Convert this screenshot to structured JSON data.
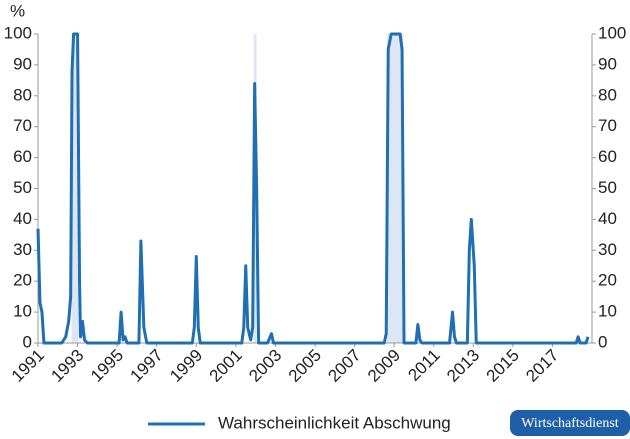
{
  "chart_data": {
    "type": "line",
    "y_label": "%",
    "x": [
      1991.0,
      1991.1,
      1991.2,
      1991.3,
      1992.2,
      1992.4,
      1992.55,
      1992.65,
      1992.72,
      1992.8,
      1993.0,
      1993.1,
      1993.15,
      1993.25,
      1993.35,
      1993.5,
      1995.1,
      1995.2,
      1995.3,
      1995.4,
      1995.5,
      1996.1,
      1996.2,
      1996.35,
      1996.5,
      1998.8,
      1998.9,
      1999.0,
      1999.1,
      1999.2,
      2001.3,
      2001.4,
      2001.5,
      2001.6,
      2001.75,
      2001.85,
      2001.95,
      2002.05,
      2002.15,
      2002.6,
      2002.8,
      2002.9,
      2008.5,
      2008.6,
      2008.7,
      2008.85,
      2009.3,
      2009.4,
      2009.5,
      2010.1,
      2010.2,
      2010.3,
      2010.4,
      2011.8,
      2011.95,
      2012.05,
      2012.15,
      2012.7,
      2012.8,
      2012.9,
      2013.05,
      2013.15,
      2018.2,
      2018.3,
      2018.4,
      2018.7,
      2018.8
    ],
    "series": [
      {
        "name": "Wahrscheinlichkeit Abschwung",
        "color": "#1f6fb2",
        "values": [
          37,
          13,
          10,
          0,
          0,
          2,
          7,
          15,
          88,
          100,
          100,
          20,
          2,
          7,
          1,
          0,
          0,
          10,
          1,
          2,
          0,
          0,
          33,
          5,
          0,
          0,
          5,
          28,
          5,
          0,
          0,
          5,
          25,
          5,
          1,
          5,
          84,
          50,
          0,
          0,
          3,
          0,
          0,
          3,
          95,
          100,
          100,
          95,
          0,
          0,
          6,
          1,
          0,
          0,
          10,
          2,
          0,
          0,
          30,
          40,
          25,
          0,
          0,
          2,
          0,
          0,
          2
        ]
      }
    ],
    "shaded": [
      [
        1992.7,
        1993.05
      ],
      [
        2001.9,
        2002.05
      ],
      [
        2008.65,
        2009.45
      ]
    ],
    "shade_color": "#dde6f4",
    "xlim": [
      1991,
      2019
    ],
    "xticks": [
      1991,
      1993,
      1995,
      1997,
      1999,
      2001,
      2003,
      2005,
      2007,
      2009,
      2011,
      2013,
      2015,
      2017
    ],
    "ylim": [
      0,
      100
    ],
    "yticks": [
      0,
      10,
      20,
      30,
      40,
      50,
      60,
      70,
      80,
      90,
      100
    ],
    "y2lim": [
      0,
      100
    ],
    "y2ticks": [
      0,
      10,
      20,
      30,
      40,
      50,
      60,
      70,
      80,
      90,
      100
    ]
  },
  "brand": "Wirtschaftsdienst"
}
